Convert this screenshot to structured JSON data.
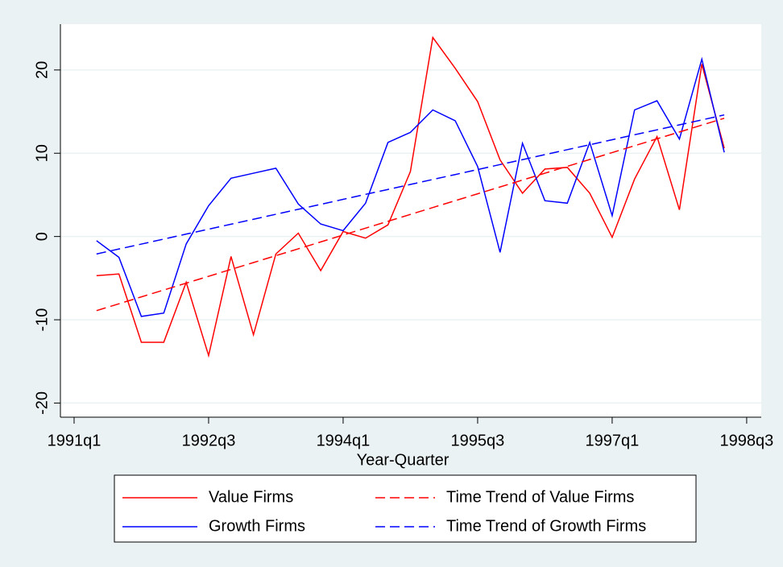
{
  "chart_data": {
    "type": "line",
    "xlabel": "Year-Quarter",
    "x": [
      125,
      126,
      127,
      128,
      129,
      130,
      131,
      132,
      133,
      134,
      135,
      136,
      137,
      138,
      139,
      140,
      141,
      142,
      143,
      144,
      145,
      146,
      147,
      148,
      149,
      150,
      151,
      152,
      153
    ],
    "series": [
      {
        "name": "Value Firms",
        "color": "#ff0000",
        "dashed": false,
        "values": [
          -4.7,
          -4.5,
          -12.7,
          -12.7,
          -5.5,
          -14.3,
          -2.4,
          -11.8,
          -2.1,
          0.4,
          -4.1,
          0.6,
          -0.2,
          1.4,
          7.8,
          23.9,
          20.2,
          16.2,
          9.2,
          5.2,
          8.1,
          8.3,
          5.2,
          -0.1,
          6.9,
          12.0,
          3.2,
          20.7,
          10.6
        ]
      },
      {
        "name": "Growth Firms",
        "color": "#0000ff",
        "dashed": false,
        "values": [
          -0.5,
          -2.5,
          -9.6,
          -9.2,
          -0.9,
          3.7,
          7.0,
          7.6,
          8.2,
          3.9,
          1.5,
          0.7,
          4.0,
          11.3,
          12.5,
          15.2,
          13.9,
          8.4,
          -1.9,
          11.2,
          4.3,
          4.0,
          11.3,
          2.5,
          15.2,
          16.3,
          11.7,
          21.3,
          10.1
        ]
      },
      {
        "name": "Time Trend of Value Firms",
        "color": "#ff0000",
        "dashed": true,
        "values": [
          -8.9,
          -8.08,
          -7.25,
          -6.43,
          -5.6,
          -4.78,
          -3.95,
          -3.13,
          -2.3,
          -1.48,
          -0.65,
          0.18,
          1.0,
          1.83,
          2.65,
          3.48,
          4.3,
          5.13,
          5.95,
          6.78,
          7.6,
          8.43,
          9.25,
          10.08,
          10.9,
          11.73,
          12.55,
          13.38,
          14.2
        ]
      },
      {
        "name": "Time Trend of Growth Firms",
        "color": "#0000ff",
        "dashed": true,
        "values": [
          -2.1,
          -1.5,
          -0.91,
          -0.31,
          0.29,
          0.88,
          1.48,
          2.07,
          2.67,
          3.27,
          3.86,
          4.46,
          5.06,
          5.65,
          6.25,
          6.85,
          7.44,
          8.04,
          8.64,
          9.23,
          9.83,
          10.43,
          11.02,
          11.62,
          12.22,
          12.81,
          13.41,
          14.0,
          14.6
        ]
      }
    ],
    "xlim": [
      123.39,
      154.65
    ],
    "xticks": [
      {
        "value": 124,
        "label": "1991q1"
      },
      {
        "value": 130,
        "label": "1992q3"
      },
      {
        "value": 136,
        "label": "1994q1"
      },
      {
        "value": 142,
        "label": "1995q3"
      },
      {
        "value": 148,
        "label": "1997q1"
      },
      {
        "value": 154,
        "label": "1998q3"
      }
    ],
    "ylim": [
      -21.7,
      25.5
    ],
    "yticks": [
      -20,
      -10,
      0,
      10,
      20
    ],
    "grid": true
  }
}
